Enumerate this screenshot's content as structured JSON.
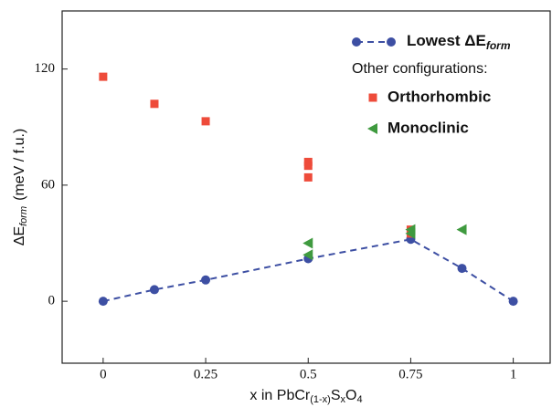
{
  "chart_data": {
    "type": "line",
    "xlabel": {
      "main": "x in PbCr",
      "sub1": "(1-x)",
      "mid": "S",
      "sub2": "x",
      "end": "O",
      "sub3": "4"
    },
    "ylabel": {
      "main": "ΔE",
      "sub": "form",
      "unit": "(meV / f.u.)"
    },
    "xlim": [
      -0.1,
      1.09
    ],
    "ylim": [
      -32,
      150
    ],
    "xticks": [
      0,
      0.25,
      0.5,
      0.75,
      1
    ],
    "yticks": [
      0,
      60,
      120
    ],
    "legend_note": "Other configurations:",
    "series": [
      {
        "name": "Lowest ΔE",
        "name_sub": "form",
        "color": "#3d4fa3",
        "marker": "circle",
        "line": "dashed",
        "x": [
          0,
          0.125,
          0.25,
          0.5,
          0.75,
          0.875,
          1
        ],
        "values": [
          0,
          6,
          11,
          22,
          32,
          17,
          0
        ]
      },
      {
        "name": "Orthorhombic",
        "color": "#ee4b3a",
        "marker": "square",
        "line": "none",
        "x": [
          0,
          0.125,
          0.25,
          0.5,
          0.5,
          0.5,
          0.75,
          0.75
        ],
        "values": [
          116,
          102,
          93,
          72,
          70,
          64,
          37,
          35
        ]
      },
      {
        "name": "Monoclinic",
        "color": "#3f9a3f",
        "marker": "triangle-left",
        "line": "none",
        "x": [
          0.5,
          0.5,
          0.75,
          0.75,
          0.875
        ],
        "values": [
          30,
          24,
          37,
          35,
          37
        ]
      }
    ]
  }
}
